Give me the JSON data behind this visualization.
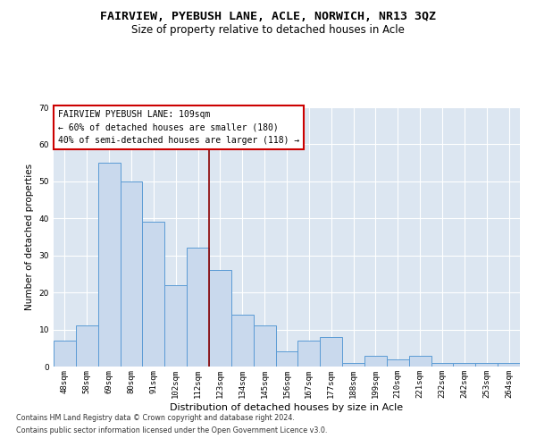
{
  "title": "FAIRVIEW, PYEBUSH LANE, ACLE, NORWICH, NR13 3QZ",
  "subtitle": "Size of property relative to detached houses in Acle",
  "xlabel": "Distribution of detached houses by size in Acle",
  "ylabel": "Number of detached properties",
  "categories": [
    "48sqm",
    "58sqm",
    "69sqm",
    "80sqm",
    "91sqm",
    "102sqm",
    "112sqm",
    "123sqm",
    "134sqm",
    "145sqm",
    "156sqm",
    "167sqm",
    "177sqm",
    "188sqm",
    "199sqm",
    "210sqm",
    "221sqm",
    "232sqm",
    "242sqm",
    "253sqm",
    "264sqm"
  ],
  "values": [
    7,
    11,
    55,
    50,
    39,
    22,
    32,
    26,
    14,
    11,
    4,
    7,
    8,
    1,
    3,
    2,
    3,
    1,
    1,
    1,
    1
  ],
  "bar_color": "#c9d9ed",
  "bar_edge_color": "#5b9bd5",
  "bg_color": "#dce6f1",
  "grid_color": "#ffffff",
  "vline_x": 6.5,
  "vline_color": "#8b0000",
  "annotation_text": "FAIRVIEW PYEBUSH LANE: 109sqm\n← 60% of detached houses are smaller (180)\n40% of semi-detached houses are larger (118) →",
  "annotation_box_color": "#ffffff",
  "annotation_box_edge": "#cc0000",
  "footnote1": "Contains HM Land Registry data © Crown copyright and database right 2024.",
  "footnote2": "Contains public sector information licensed under the Open Government Licence v3.0.",
  "ylim": [
    0,
    70
  ],
  "title_fontsize": 9.5,
  "subtitle_fontsize": 8.5,
  "xlabel_fontsize": 8,
  "ylabel_fontsize": 7.5,
  "tick_fontsize": 6.5,
  "annotation_fontsize": 7,
  "footnote_fontsize": 5.8
}
